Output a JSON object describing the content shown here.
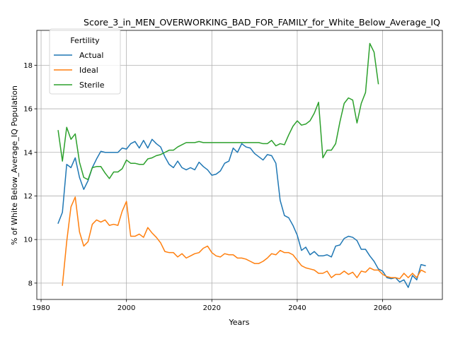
{
  "chart_data": {
    "type": "line",
    "title": "Score_3_in_MEN_OVERWORKING_BAD_FOR_FAMILY_for_White_Below_Average_IQ",
    "xlabel": "Years",
    "ylabel": "% of White Below_Average_IQ Population",
    "xlim": [
      1979,
      2074
    ],
    "ylim": [
      7.25,
      19.6
    ],
    "xticks": [
      1980,
      2000,
      2020,
      2040,
      2060
    ],
    "yticks": [
      8,
      10,
      12,
      14,
      16,
      18
    ],
    "grid": true,
    "legend": {
      "title": "Fertility",
      "placement": "top-left"
    },
    "series": [
      {
        "name": "Actual",
        "color": "#1f77b4",
        "x": [
          1984,
          1985,
          1986,
          1987,
          1988,
          1989,
          1990,
          1991,
          1992,
          1993,
          1994,
          1995,
          1996,
          1997,
          1998,
          1999,
          2000,
          2001,
          2002,
          2003,
          2004,
          2005,
          2006,
          2007,
          2008,
          2009,
          2010,
          2011,
          2012,
          2013,
          2014,
          2015,
          2016,
          2017,
          2018,
          2019,
          2020,
          2021,
          2022,
          2023,
          2024,
          2025,
          2026,
          2027,
          2028,
          2029,
          2030,
          2031,
          2032,
          2033,
          2034,
          2035,
          2036,
          2037,
          2038,
          2039,
          2040,
          2041,
          2042,
          2043,
          2044,
          2045,
          2046,
          2047,
          2048,
          2049,
          2050,
          2051,
          2052,
          2053,
          2054,
          2055,
          2056,
          2057,
          2058,
          2059,
          2060,
          2061,
          2062,
          2063,
          2064,
          2065,
          2066,
          2067,
          2068,
          2069,
          2070
        ],
        "values": [
          10.75,
          11.25,
          13.45,
          13.3,
          13.75,
          12.85,
          12.3,
          12.7,
          13.3,
          13.7,
          14.05,
          14.0,
          14.0,
          14.0,
          14.0,
          14.2,
          14.15,
          14.4,
          14.5,
          14.2,
          14.55,
          14.2,
          14.6,
          14.4,
          14.25,
          13.8,
          13.45,
          13.3,
          13.6,
          13.3,
          13.2,
          13.3,
          13.2,
          13.55,
          13.35,
          13.2,
          12.95,
          13.0,
          13.15,
          13.5,
          13.6,
          14.2,
          14.0,
          14.4,
          14.25,
          14.2,
          13.95,
          13.8,
          13.65,
          13.9,
          13.85,
          13.5,
          11.8,
          11.1,
          11.0,
          10.65,
          10.2,
          9.5,
          9.65,
          9.3,
          9.45,
          9.25,
          9.25,
          9.3,
          9.2,
          9.7,
          9.75,
          10.05,
          10.15,
          10.1,
          9.95,
          9.55,
          9.55,
          9.25,
          9.0,
          8.65,
          8.55,
          8.25,
          8.2,
          8.25,
          8.05,
          8.15,
          7.8,
          8.35,
          8.15,
          8.85,
          8.8
        ]
      },
      {
        "name": "Ideal",
        "color": "#ff7f0e",
        "x": [
          1985,
          1986,
          1987,
          1988,
          1989,
          1990,
          1991,
          1992,
          1993,
          1994,
          1995,
          1996,
          1997,
          1998,
          1999,
          2000,
          2001,
          2002,
          2003,
          2004,
          2005,
          2006,
          2007,
          2008,
          2009,
          2010,
          2011,
          2012,
          2013,
          2014,
          2015,
          2016,
          2017,
          2018,
          2019,
          2020,
          2021,
          2022,
          2023,
          2024,
          2025,
          2026,
          2027,
          2028,
          2029,
          2030,
          2031,
          2032,
          2033,
          2034,
          2035,
          2036,
          2037,
          2038,
          2039,
          2040,
          2041,
          2042,
          2043,
          2044,
          2045,
          2046,
          2047,
          2048,
          2049,
          2050,
          2051,
          2052,
          2053,
          2054,
          2055,
          2056,
          2057,
          2058,
          2059,
          2060,
          2061,
          2062,
          2063,
          2064,
          2065,
          2066,
          2067,
          2068,
          2069,
          2070
        ],
        "values": [
          7.9,
          9.9,
          11.5,
          11.95,
          10.35,
          9.7,
          9.9,
          10.7,
          10.9,
          10.8,
          10.9,
          10.65,
          10.7,
          10.65,
          11.3,
          11.75,
          10.15,
          10.15,
          10.25,
          10.1,
          10.55,
          10.3,
          10.1,
          9.85,
          9.45,
          9.4,
          9.4,
          9.2,
          9.35,
          9.15,
          9.25,
          9.35,
          9.4,
          9.6,
          9.7,
          9.4,
          9.25,
          9.2,
          9.35,
          9.3,
          9.3,
          9.15,
          9.15,
          9.1,
          9.0,
          8.9,
          8.9,
          9.0,
          9.15,
          9.35,
          9.3,
          9.5,
          9.4,
          9.4,
          9.3,
          9.05,
          8.8,
          8.7,
          8.65,
          8.6,
          8.45,
          8.45,
          8.55,
          8.25,
          8.4,
          8.4,
          8.55,
          8.4,
          8.5,
          8.25,
          8.55,
          8.5,
          8.7,
          8.6,
          8.6,
          8.4,
          8.3,
          8.25,
          8.25,
          8.2,
          8.45,
          8.25,
          8.45,
          8.25,
          8.6,
          8.5
        ]
      },
      {
        "name": "Sterile",
        "color": "#2ca02c",
        "x": [
          1984,
          1985,
          1986,
          1987,
          1988,
          1989,
          1990,
          1991,
          1992,
          1993,
          1994,
          1995,
          1996,
          1997,
          1998,
          1999,
          2000,
          2001,
          2002,
          2003,
          2004,
          2005,
          2006,
          2007,
          2008,
          2009,
          2010,
          2011,
          2012,
          2013,
          2014,
          2015,
          2016,
          2017,
          2018,
          2019,
          2020,
          2021,
          2022,
          2023,
          2024,
          2025,
          2026,
          2027,
          2028,
          2029,
          2030,
          2031,
          2032,
          2033,
          2034,
          2035,
          2036,
          2037,
          2038,
          2039,
          2040,
          2041,
          2042,
          2043,
          2044,
          2045,
          2046,
          2047,
          2048,
          2049,
          2050,
          2051,
          2052,
          2053,
          2054,
          2055,
          2056,
          2057,
          2058,
          2059
        ],
        "values": [
          15.0,
          13.6,
          15.15,
          14.6,
          14.85,
          13.55,
          12.85,
          12.75,
          13.3,
          13.35,
          13.35,
          13.05,
          12.8,
          13.1,
          13.1,
          13.25,
          13.65,
          13.5,
          13.5,
          13.45,
          13.45,
          13.7,
          13.75,
          13.85,
          13.9,
          14.0,
          14.1,
          14.1,
          14.25,
          14.35,
          14.45,
          14.45,
          14.45,
          14.5,
          14.45,
          14.45,
          14.45,
          14.45,
          14.45,
          14.45,
          14.45,
          14.45,
          14.45,
          14.45,
          14.45,
          14.45,
          14.45,
          14.45,
          14.4,
          14.4,
          14.55,
          14.3,
          14.4,
          14.35,
          14.8,
          15.2,
          15.45,
          15.25,
          15.3,
          15.45,
          15.8,
          16.3,
          13.75,
          14.1,
          14.1,
          14.4,
          15.4,
          16.25,
          16.5,
          16.4,
          15.35,
          16.25,
          16.75,
          19.0,
          18.6,
          17.15
        ]
      }
    ]
  }
}
